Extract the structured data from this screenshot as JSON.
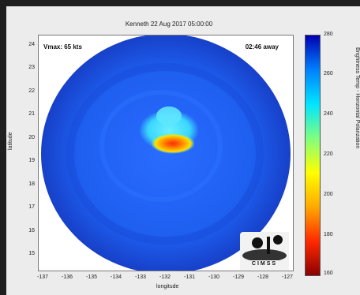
{
  "figure": {
    "title": "Kenneth  22 Aug 2017 05:00:00",
    "vmax_label": "Vmax: 65 kts",
    "overpass_label": "02:46 away",
    "x_axis": {
      "label": "longitude",
      "ticks": [
        "-137",
        "-136",
        "-135",
        "-134",
        "-133",
        "-132",
        "-131",
        "-130",
        "-129",
        "-128",
        "-127"
      ]
    },
    "y_axis": {
      "label": "latitude",
      "ticks": [
        "24",
        "23",
        "22",
        "21",
        "20",
        "19",
        "18",
        "17",
        "16",
        "15"
      ]
    },
    "colorbar": {
      "label": "Brightness Temp - Horizontal Polarization",
      "ticks": [
        "280",
        "260",
        "240",
        "220",
        "200",
        "180",
        "160"
      ],
      "range": [
        160,
        280
      ],
      "colors": [
        "#8b0000",
        "#ff2a00",
        "#ffaa00",
        "#ffff00",
        "#7fff7f",
        "#00e5ff",
        "#0080ff",
        "#0000b0"
      ]
    },
    "logo_text": "CIMSS",
    "colors": {
      "swath_base": "#1e5ff0",
      "swath_dark": "#1740c8",
      "cyan_feature": "#3ad6ff",
      "core_warm": "#ff8a00",
      "core_hot": "#ff2a00"
    }
  }
}
